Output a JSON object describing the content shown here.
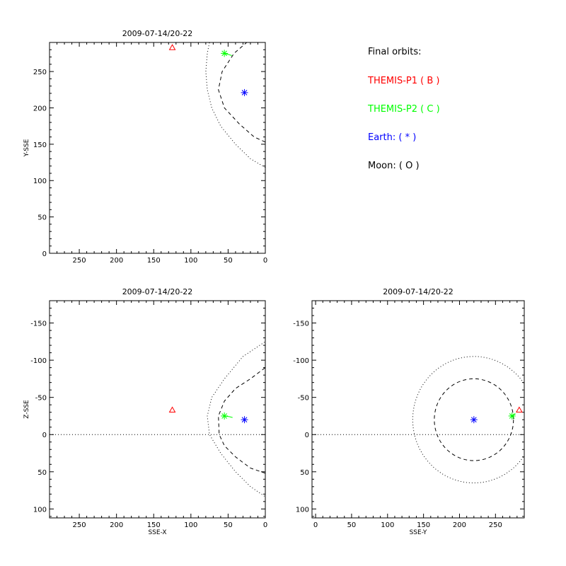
{
  "legend": {
    "title": "Final orbits:",
    "entries": [
      {
        "label": "THEMIS-P1 ( B )",
        "color": "#ff0000"
      },
      {
        "label": "THEMIS-P2 ( C )",
        "color": "#00ff00"
      },
      {
        "label": "Earth: ( * )",
        "color": "#0000ff"
      },
      {
        "label": "Moon: ( O )",
        "color": "#000000"
      }
    ]
  },
  "chart_data": [
    {
      "type": "scatter",
      "title": "2009-07-14/20-22",
      "xlabel": "",
      "ylabel": "Y-SSE",
      "xlim": [
        290,
        0
      ],
      "ylim": [
        290,
        0
      ],
      "xticks": [
        250,
        200,
        150,
        100,
        50,
        0
      ],
      "yticks": [
        0,
        50,
        100,
        150,
        200,
        250
      ],
      "zero_line": false,
      "points": [
        {
          "name": "Earth",
          "x": 28,
          "y": 221,
          "color": "#0000ff",
          "marker": "asterisk"
        },
        {
          "name": "THEMIS-P1",
          "x": 125,
          "y": 283,
          "color": "#ff0000",
          "marker": "triangle"
        },
        {
          "name": "THEMIS-P2",
          "x": 55,
          "y": 275,
          "color": "#00ff00",
          "marker": "asterisk"
        }
      ],
      "curves": [
        {
          "style": "dotted",
          "points": [
            [
              0,
              118
            ],
            [
              20,
              130
            ],
            [
              40,
              150
            ],
            [
              60,
              175
            ],
            [
              72,
              200
            ],
            [
              78,
              225
            ],
            [
              80,
              250
            ],
            [
              78,
              275
            ],
            [
              75,
              290
            ]
          ]
        },
        {
          "style": "dashed",
          "points": [
            [
              0,
              153
            ],
            [
              15,
              160
            ],
            [
              35,
              178
            ],
            [
              55,
              200
            ],
            [
              63,
              225
            ],
            [
              58,
              250
            ],
            [
              42,
              275
            ],
            [
              25,
              290
            ]
          ]
        }
      ],
      "trails": [
        {
          "color": "#00ff00",
          "points": [
            [
              55,
              275
            ],
            [
              48,
              273
            ],
            [
              45,
              272
            ]
          ]
        }
      ]
    },
    {
      "type": "scatter",
      "title": "2009-07-14/20-22",
      "xlabel": "SSE-X",
      "ylabel": "Z-SSE",
      "xlim": [
        290,
        0
      ],
      "ylim": [
        -180,
        112
      ],
      "xticks": [
        250,
        200,
        150,
        100,
        50,
        0
      ],
      "yticks": [
        100,
        50,
        0,
        -50,
        -100,
        -150
      ],
      "zero_line": true,
      "points": [
        {
          "name": "Earth",
          "x": 28,
          "y": -20,
          "color": "#0000ff",
          "marker": "asterisk"
        },
        {
          "name": "THEMIS-P1",
          "x": 125,
          "y": -33,
          "color": "#ff0000",
          "marker": "triangle"
        },
        {
          "name": "THEMIS-P2",
          "x": 55,
          "y": -25,
          "color": "#00ff00",
          "marker": "asterisk"
        }
      ],
      "curves": [
        {
          "style": "dotted",
          "points": [
            [
              -2,
              85
            ],
            [
              20,
              70
            ],
            [
              40,
              50
            ],
            [
              60,
              25
            ],
            [
              75,
              0
            ],
            [
              78,
              -25
            ],
            [
              72,
              -50
            ],
            [
              55,
              -75
            ],
            [
              30,
              -105
            ],
            [
              0,
              -125
            ]
          ]
        },
        {
          "style": "dashed",
          "points": [
            [
              0,
              52
            ],
            [
              20,
              45
            ],
            [
              40,
              30
            ],
            [
              55,
              15
            ],
            [
              62,
              0
            ],
            [
              63,
              -25
            ],
            [
              55,
              -45
            ],
            [
              40,
              -62
            ],
            [
              20,
              -75
            ],
            [
              0,
              -90
            ]
          ]
        }
      ],
      "trails": [
        {
          "color": "#00ff00",
          "points": [
            [
              55,
              -25
            ],
            [
              48,
              -24
            ],
            [
              44,
              -23
            ]
          ]
        }
      ]
    },
    {
      "type": "scatter",
      "title": "2009-07-14/20-22",
      "xlabel": "SSE-Y",
      "ylabel": "",
      "xlim": [
        -5,
        290
      ],
      "ylim": [
        -180,
        112
      ],
      "xticks": [
        0,
        50,
        100,
        150,
        200,
        250
      ],
      "yticks": [
        100,
        50,
        0,
        -50,
        -100,
        -150
      ],
      "zero_line": true,
      "points": [
        {
          "name": "Earth",
          "x": 220,
          "y": -20,
          "color": "#0000ff",
          "marker": "asterisk"
        },
        {
          "name": "THEMIS-P2",
          "x": 273,
          "y": -25,
          "color": "#00ff00",
          "marker": "asterisk"
        },
        {
          "name": "THEMIS-P1",
          "x": 283,
          "y": -33,
          "color": "#ff0000",
          "marker": "triangle"
        }
      ],
      "circles": [
        {
          "style": "dotted",
          "cx": 220,
          "cy": -20,
          "r": 85
        },
        {
          "style": "dashed",
          "cx": 220,
          "cy": -20,
          "r": 55
        }
      ],
      "trails": [
        {
          "color": "#00ff00",
          "points": [
            [
              273,
              -25
            ],
            [
              278,
              -28
            ]
          ]
        }
      ]
    }
  ]
}
